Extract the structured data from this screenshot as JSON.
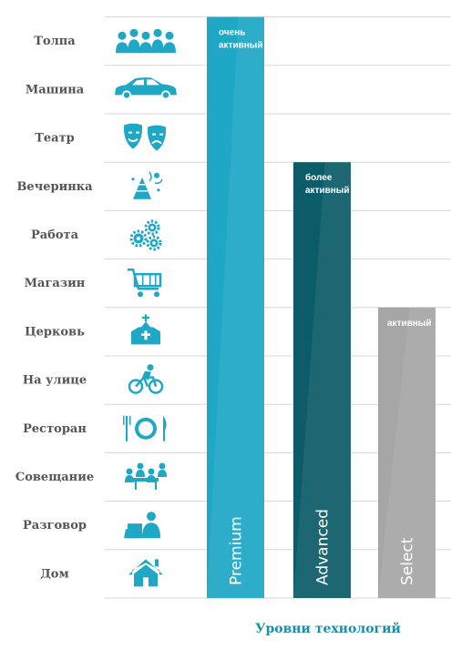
{
  "colors": {
    "grid": "#d7d7d7",
    "label_text": "#555555",
    "icon": "#1fa7c6",
    "x_title": "#1a8fa8"
  },
  "chart_data": {
    "type": "bar",
    "categories": [
      "Premium",
      "Advanced",
      "Select"
    ],
    "values": [
      12,
      9,
      6
    ],
    "y_levels": [
      "Дом",
      "Разговор",
      "Совещание",
      "Ресторан",
      "На улице",
      "Церковь",
      "Магазин",
      "Работа",
      "Вечеринка",
      "Театр",
      "Машина",
      "Толпа"
    ],
    "y_icons": [
      "house-icon",
      "conversation-icon",
      "meeting-icon",
      "restaurant-icon",
      "cyclist-icon",
      "church-icon",
      "shopping-cart-icon",
      "gears-icon",
      "party-icon",
      "theater-masks-icon",
      "car-icon",
      "crowd-icon"
    ],
    "bar_labels": [
      [
        "очень",
        "активный"
      ],
      [
        "более",
        "активный"
      ],
      [
        "активный"
      ]
    ],
    "bar_colors": [
      "#1fa7c6",
      "#0b5c68",
      "#a6a6a6"
    ],
    "xlabel": "Уровни технологий",
    "ylim": [
      0,
      12
    ],
    "grid": true
  }
}
